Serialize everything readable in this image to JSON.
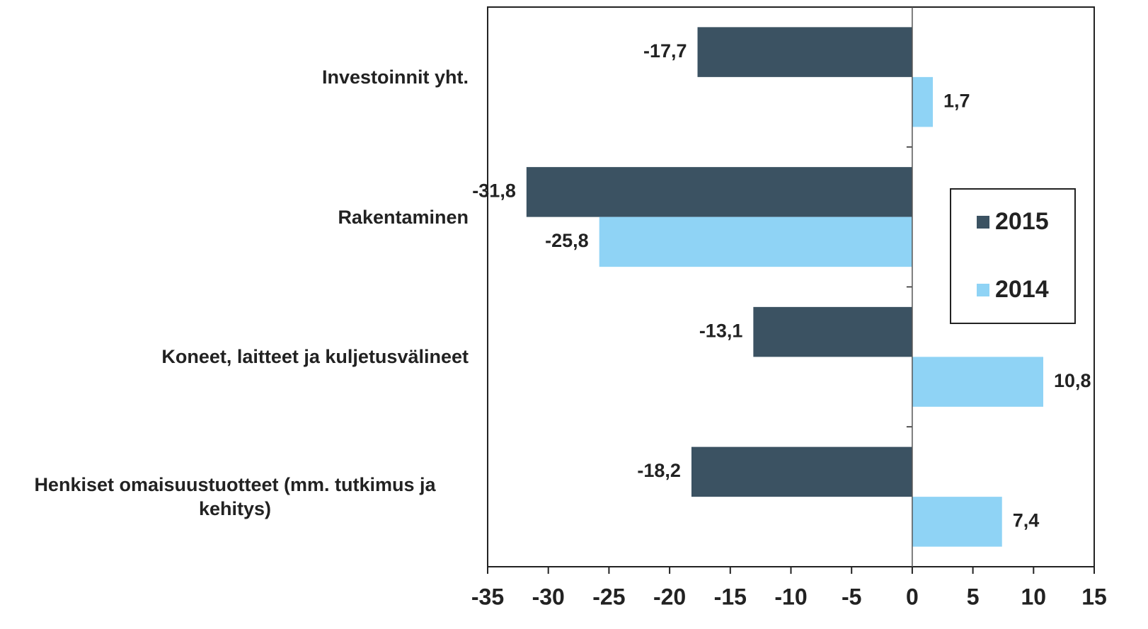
{
  "chart_data": {
    "type": "barh",
    "categories": [
      "Investoinnit yht.",
      "Rakentaminen",
      "Koneet, laitteet ja kuljetusvälineet",
      "Henkiset omaisuustuotteet (mm. tutkimus ja kehitys)"
    ],
    "series": [
      {
        "name": "2015",
        "color": "#3b5262",
        "values": [
          -17.7,
          -31.8,
          -13.1,
          -18.2
        ],
        "value_labels": [
          "-17,7",
          "-31,8",
          "-13,1",
          "-18,2"
        ]
      },
      {
        "name": "2014",
        "color": "#8fd3f5",
        "values": [
          1.7,
          -25.8,
          10.8,
          7.4
        ],
        "value_labels": [
          "1,7",
          "-25,8",
          "10,8",
          "7,4"
        ]
      }
    ],
    "xlim": [
      -35,
      15
    ],
    "xticks": [
      -35,
      -30,
      -25,
      -20,
      -15,
      -10,
      -5,
      0,
      5,
      10,
      15
    ],
    "legend": "right"
  }
}
